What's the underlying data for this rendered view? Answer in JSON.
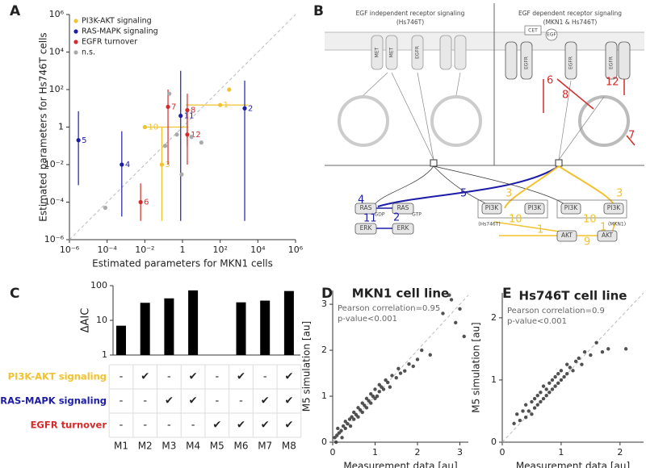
{
  "panels": [
    "A",
    "B",
    "C",
    "D",
    "E"
  ],
  "chart_data": [
    {
      "type": "scatter",
      "xlabel": "Estimated parameters for MKN1 cells",
      "ylabel": "Estimated parameters for Hs746T cells",
      "xscale": "log",
      "yscale": "log",
      "xlim": [
        1e-06,
        1000000.0
      ],
      "ylim": [
        1e-06,
        1000000.0
      ],
      "xticks": [
        {
          "value": 1e-06,
          "label": "10⁻⁶"
        },
        {
          "value": 0.0001,
          "label": "10⁻⁴"
        },
        {
          "value": 0.01,
          "label": "10⁻²"
        },
        1,
        {
          "value": 100,
          "label": "10²"
        },
        {
          "value": 10000,
          "label": "10⁴"
        },
        {
          "value": 1000000.0,
          "label": "10⁶"
        }
      ],
      "yticks": [
        {
          "value": 1e-06,
          "label": "10⁻⁶"
        },
        {
          "value": 0.0001,
          "label": "10⁻⁴"
        },
        {
          "value": 0.01,
          "label": "10⁻²"
        },
        1,
        {
          "value": 100,
          "label": "10²"
        },
        {
          "value": 10000,
          "label": "10⁴"
        },
        {
          "value": 1000000.0,
          "label": "10⁶"
        }
      ],
      "diagonal": true,
      "legend": "upper left",
      "series": [
        {
          "name": "PI3K-AKT signaling",
          "color": "#f2c12e",
          "x": [
            100,
            0.01,
            0.08,
            300
          ],
          "y": [
            15,
            1,
            0.01,
            100
          ],
          "point_labels": [
            "1",
            "10",
            "3",
            null
          ],
          "x_err": [
            [
              1.5,
              3000
            ],
            [
              0.01,
              2
            ],
            null,
            null
          ],
          "y_err": [
            null,
            null,
            [
              1e-05,
              1
            ],
            null
          ]
        },
        {
          "name": "RAS-MAPK signaling",
          "color": "#1c1ca8",
          "x": [
            3e-06,
            0.0006,
            0.8,
            2000
          ],
          "y": [
            0.2,
            0.01,
            4,
            10
          ],
          "point_labels": [
            "5",
            "4",
            "11",
            "2"
          ],
          "x_err": [
            null,
            null,
            null,
            null
          ],
          "y_err": [
            [
              0.0008,
              7
            ],
            [
              1.7e-05,
              0.6
            ],
            [
              1e-05,
              1000
            ],
            [
              1e-05,
              300
            ]
          ]
        },
        {
          "name": "EGFR turnover",
          "color": "#d42a2a",
          "x": [
            0.17,
            1.8,
            1.8,
            0.006
          ],
          "y": [
            12,
            8,
            0.4,
            0.0001
          ],
          "point_labels": [
            "7",
            "8",
            "12",
            "6"
          ],
          "x_err": [
            null,
            null,
            null,
            null
          ],
          "y_err": [
            [
              0.01,
              100
            ],
            [
              0.1,
              60
            ],
            [
              0.01,
              4
            ],
            [
              1e-05,
              0.001
            ]
          ]
        },
        {
          "name": "n.s.",
          "color": "#aaaaaa",
          "x": [
            8e-05,
            0.12,
            3,
            10,
            0.9,
            0.5,
            0.2
          ],
          "y": [
            5e-05,
            0.1,
            0.3,
            0.15,
            0.003,
            0.4,
            60
          ],
          "point_labels": [
            null,
            null,
            null,
            null,
            null,
            null,
            null
          ],
          "x_err": [
            null,
            null,
            null,
            null,
            null,
            null,
            null
          ],
          "y_err": [
            null,
            null,
            null,
            null,
            null,
            null,
            null
          ]
        }
      ]
    },
    {
      "type": "bar",
      "ylabel": "ΔAIC",
      "yscale": "log",
      "ylim": [
        1,
        100
      ],
      "yticks": [
        1,
        10,
        100
      ],
      "categories": [
        "M1",
        "M2",
        "M3",
        "M4",
        "M5",
        "M6",
        "M7",
        "M8"
      ],
      "values": [
        7,
        32,
        43,
        73,
        null,
        33,
        37,
        70
      ],
      "color": "#000000",
      "table": {
        "row_labels": [
          "PI3K-AKT signaling",
          "RAS-MAPK signaling",
          "EGFR turnover"
        ],
        "row_colors": [
          "#f2c12e",
          "#1c1ca8",
          "#d42a2a"
        ],
        "cells": [
          [
            "-",
            "✔",
            "-",
            "✔",
            "-",
            "✔",
            "-",
            "✔"
          ],
          [
            "-",
            "-",
            "✔",
            "✔",
            "-",
            "-",
            "✔",
            "✔"
          ],
          [
            "-",
            "-",
            "-",
            "-",
            "✔",
            "✔",
            "✔",
            "✔"
          ]
        ]
      }
    },
    {
      "type": "scatter",
      "title": "MKN1 cell line",
      "xlabel": "Measurement data [au]",
      "ylabel": "M5 simulation [au]",
      "annotations": [
        "Pearson correlation=0.95",
        "p-value<0.001"
      ],
      "xlim": [
        0,
        3.2
      ],
      "ylim": [
        0,
        3.3
      ],
      "xticks": [
        0,
        1,
        2,
        3
      ],
      "yticks": [
        0,
        1,
        2,
        3
      ],
      "diagonal": true,
      "series": [
        {
          "color": "#333333",
          "x": [
            0.05,
            0.08,
            0.1,
            0.12,
            0.15,
            0.2,
            0.22,
            0.25,
            0.3,
            0.3,
            0.35,
            0.4,
            0.42,
            0.45,
            0.5,
            0.5,
            0.55,
            0.6,
            0.6,
            0.65,
            0.7,
            0.7,
            0.75,
            0.8,
            0.8,
            0.85,
            0.9,
            0.9,
            0.95,
            1.0,
            1.0,
            1.05,
            1.1,
            1.1,
            1.15,
            1.2,
            1.25,
            1.3,
            1.35,
            1.4,
            1.5,
            1.55,
            1.6,
            1.7,
            1.8,
            1.9,
            2.0,
            2.1,
            2.3,
            2.6,
            2.75,
            2.8,
            2.9,
            3.0,
            3.1
          ],
          "y": [
            0.1,
            0,
            0.15,
            0.3,
            0.2,
            0.25,
            0.1,
            0.35,
            0.3,
            0.45,
            0.4,
            0.5,
            0.35,
            0.55,
            0.5,
            0.65,
            0.6,
            0.55,
            0.75,
            0.7,
            0.65,
            0.85,
            0.8,
            0.75,
            0.95,
            0.9,
            0.85,
            1.05,
            1.0,
            0.95,
            1.15,
            1.0,
            1.1,
            1.25,
            1.2,
            1.15,
            1.35,
            1.3,
            1.2,
            1.45,
            1.4,
            1.6,
            1.5,
            1.55,
            1.7,
            1.65,
            1.8,
            2.0,
            1.9,
            2.8,
            3.2,
            3.1,
            2.6,
            2.9,
            2.3
          ]
        }
      ]
    },
    {
      "type": "scatter",
      "title": "Hs746T cell line",
      "xlabel": "Measurement data [au]",
      "ylabel": "M5 simulation [au]",
      "annotations": [
        "Pearson correlation=0.9",
        "p-value<0.001"
      ],
      "xlim": [
        0,
        2.4
      ],
      "ylim": [
        0,
        2.4
      ],
      "xticks": [
        0,
        1,
        2
      ],
      "yticks": [
        0,
        1,
        2
      ],
      "diagonal": true,
      "series": [
        {
          "color": "#333333",
          "x": [
            0.2,
            0.25,
            0.3,
            0.35,
            0.4,
            0.4,
            0.45,
            0.5,
            0.5,
            0.55,
            0.55,
            0.6,
            0.6,
            0.65,
            0.65,
            0.7,
            0.7,
            0.75,
            0.75,
            0.8,
            0.8,
            0.85,
            0.85,
            0.9,
            0.9,
            0.95,
            0.95,
            1.0,
            1.0,
            1.05,
            1.1,
            1.1,
            1.15,
            1.2,
            1.25,
            1.3,
            1.35,
            1.4,
            1.5,
            1.6,
            1.7,
            1.8,
            2.1
          ],
          "y": [
            0.3,
            0.45,
            0.35,
            0.5,
            0.4,
            0.6,
            0.5,
            0.45,
            0.65,
            0.55,
            0.7,
            0.6,
            0.75,
            0.65,
            0.8,
            0.7,
            0.9,
            0.75,
            0.85,
            0.8,
            0.95,
            0.85,
            1.0,
            0.9,
            1.05,
            0.95,
            1.1,
            1.0,
            1.15,
            1.05,
            1.1,
            1.25,
            1.2,
            1.15,
            1.3,
            1.35,
            1.25,
            1.45,
            1.4,
            1.6,
            1.45,
            1.5,
            1.5
          ]
        }
      ]
    }
  ],
  "diagram": {
    "labels": [
      "EGF independent receptor signaling",
      "(Hs746T)",
      "EGF dependent receptor signaling",
      "(MKN1 & Hs746T)",
      "MET",
      "MET",
      "EGFR",
      "CET",
      "EGF",
      "EGFR",
      "EGFR",
      "EGFR",
      "RAS",
      "GDP",
      "RAS",
      "GTP",
      "ERK",
      "ERK",
      "PI3K",
      "PI3K",
      "(Hs746T)",
      "PI3K",
      "PI3K",
      "(MKN1)",
      "AKT",
      "AKT"
    ],
    "numbers": [
      "5",
      "4",
      "11",
      "2",
      "3",
      "10",
      "3",
      "10",
      "1",
      "1",
      "9",
      "6",
      "8",
      "12",
      "7"
    ]
  }
}
